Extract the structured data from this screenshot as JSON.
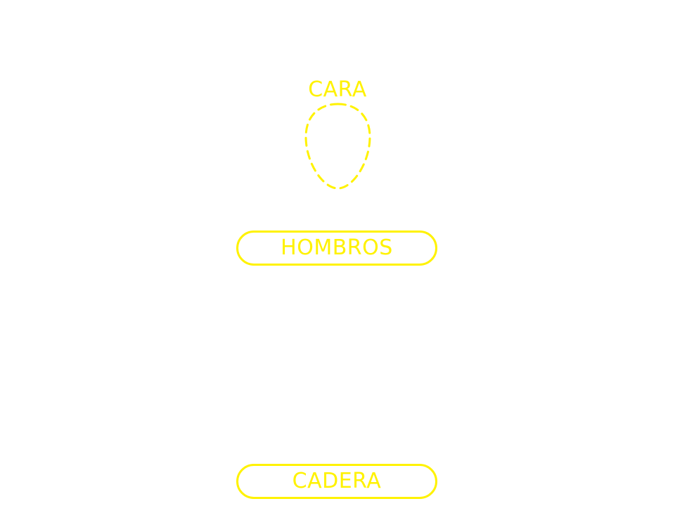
{
  "labels": {
    "face": "CARA",
    "shoulders": "HOMBROS",
    "hip": "CADERA"
  },
  "colors": {
    "background": "#ffffff",
    "accent": "#fff200"
  },
  "icons": {
    "face_guide": "face-outline-icon"
  }
}
